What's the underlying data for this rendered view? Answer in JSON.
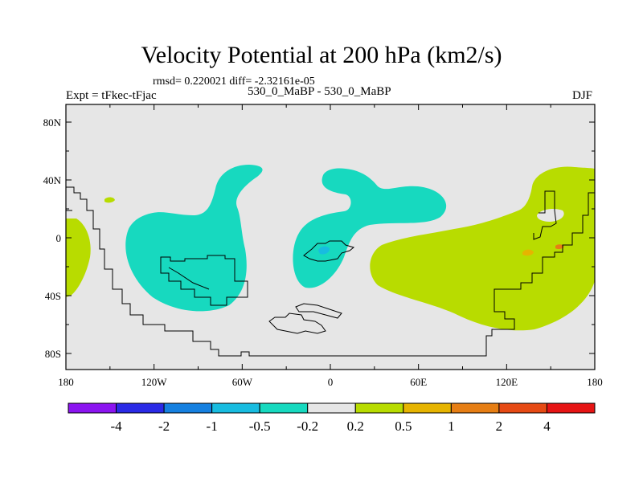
{
  "title": "Velocity Potential at 200 hPa (km2/s)",
  "stats_text": "rmsd= 0.220021 diff= -2.32161e-05",
  "expt_text": "Expt = tFkec-tFjac",
  "run_text": "530_0_MaBP - 530_0_MaBP",
  "season": "DJF",
  "x_ticks": [
    {
      "lon": -180,
      "label": "180"
    },
    {
      "lon": -120,
      "label": "120W"
    },
    {
      "lon": -60,
      "label": "60W"
    },
    {
      "lon": 0,
      "label": "0"
    },
    {
      "lon": 60,
      "label": "60E"
    },
    {
      "lon": 120,
      "label": "120E"
    },
    {
      "lon": 180,
      "label": "180"
    }
  ],
  "y_ticks": [
    {
      "lat": 80,
      "label": "80N"
    },
    {
      "lat": 40,
      "label": "40N"
    },
    {
      "lat": 0,
      "label": "0"
    },
    {
      "lat": -40,
      "label": "40S"
    },
    {
      "lat": -80,
      "label": "80S"
    }
  ],
  "colorbar": {
    "colors": [
      "#8b14f0",
      "#2a2ae6",
      "#1580e0",
      "#18bce0",
      "#17d9bf",
      "#e6e6e6",
      "#b8dc00",
      "#e6b400",
      "#e67e14",
      "#e64a14",
      "#e61414"
    ],
    "labels": [
      "-4",
      "-2",
      "-1",
      "-0.5",
      "-0.2",
      "0.2",
      "0.5",
      "1",
      "2",
      "4"
    ]
  },
  "colors": {
    "background_field": "#e6e6e6",
    "neg_weak": "#17d9bf",
    "neg_mid": "#18bce0",
    "pos_weak": "#b8dc00",
    "pos_mid": "#e67e14"
  }
}
